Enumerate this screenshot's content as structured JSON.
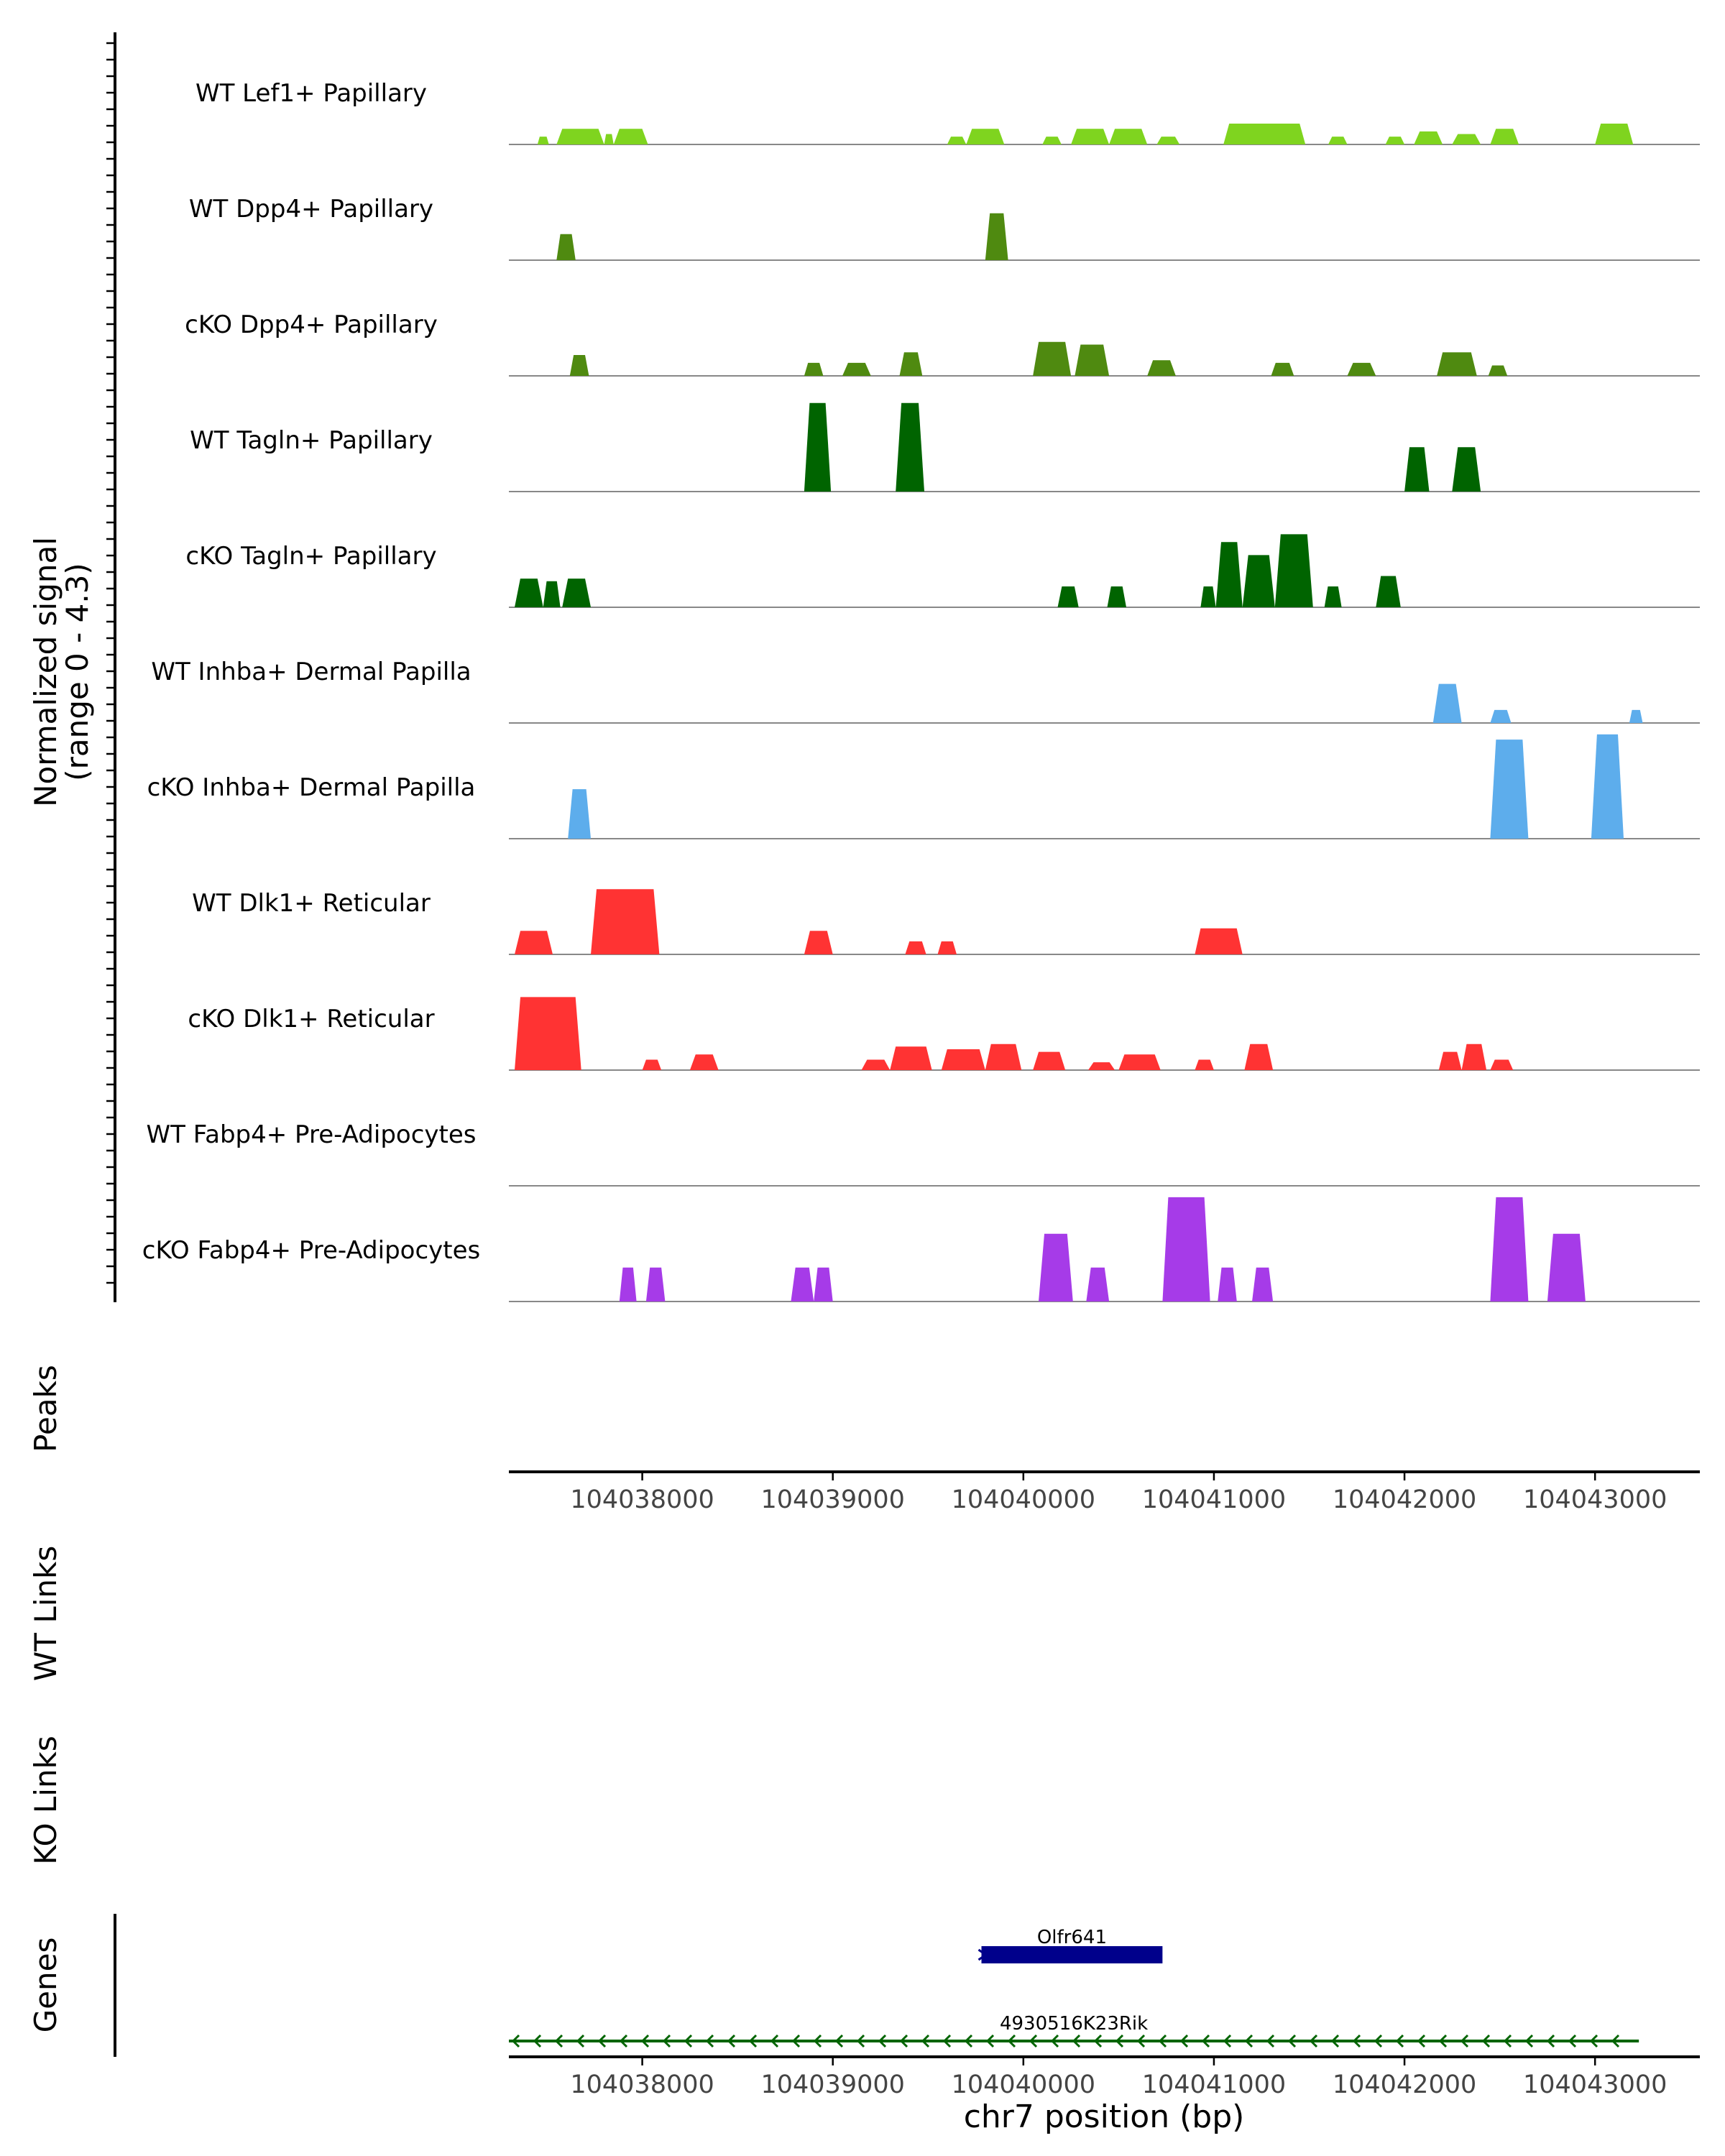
{
  "chart_data": {
    "type": "area",
    "y_axis_label": [
      "Normalized signal",
      "(range 0 - 4.3)"
    ],
    "xlabel": "chr7 position (bp)",
    "xlim": [
      104037300,
      104043550
    ],
    "ylim": [
      0,
      4.3
    ],
    "x_ticks": [
      104038000,
      104039000,
      104040000,
      104041000,
      104042000,
      104043000
    ],
    "x_tick_labels": [
      "104038000",
      "104039000",
      "104040000",
      "104041000",
      "104042000",
      "104043000"
    ],
    "tracks": [
      {
        "name": "WT Lef1+ Papillary",
        "color": "#7FD41F",
        "peaks": [
          [
            104037450,
            104037510,
            0.3
          ],
          [
            104037550,
            104037800,
            0.6
          ],
          [
            104037800,
            104037850,
            0.4
          ],
          [
            104037850,
            104038030,
            0.6
          ],
          [
            104039600,
            104039700,
            0.3
          ],
          [
            104039700,
            104039900,
            0.6
          ],
          [
            104040100,
            104040200,
            0.3
          ],
          [
            104040250,
            104040450,
            0.6
          ],
          [
            104040450,
            104040650,
            0.6
          ],
          [
            104040700,
            104040820,
            0.3
          ],
          [
            104041050,
            104041480,
            0.8
          ],
          [
            104041600,
            104041700,
            0.3
          ],
          [
            104041900,
            104042000,
            0.3
          ],
          [
            104042050,
            104042200,
            0.5
          ],
          [
            104042250,
            104042400,
            0.4
          ],
          [
            104042450,
            104042600,
            0.6
          ],
          [
            104043000,
            104043200,
            0.8
          ]
        ]
      },
      {
        "name": "WT Dpp4+ Papillary",
        "color": "#4F8A10",
        "peaks": [
          [
            104037550,
            104037650,
            1.0
          ],
          [
            104039800,
            104039920,
            1.8
          ]
        ]
      },
      {
        "name": "cKO Dpp4+ Papillary",
        "color": "#4F8A10",
        "peaks": [
          [
            104037620,
            104037720,
            0.8
          ],
          [
            104038850,
            104038950,
            0.5
          ],
          [
            104039050,
            104039200,
            0.5
          ],
          [
            104039350,
            104039470,
            0.9
          ],
          [
            104040050,
            104040250,
            1.3
          ],
          [
            104040270,
            104040450,
            1.2
          ],
          [
            104040650,
            104040800,
            0.6
          ],
          [
            104041300,
            104041420,
            0.5
          ],
          [
            104041700,
            104041850,
            0.5
          ],
          [
            104042170,
            104042380,
            0.9
          ],
          [
            104042440,
            104042540,
            0.4
          ]
        ]
      },
      {
        "name": "WT Tagln+ Papillary",
        "color": "#006400",
        "peaks": [
          [
            104038850,
            104038990,
            3.4
          ],
          [
            104039330,
            104039480,
            3.4
          ],
          [
            104042000,
            104042130,
            1.7
          ],
          [
            104042250,
            104042400,
            1.7
          ]
        ]
      },
      {
        "name": "cKO Tagln+ Papillary",
        "color": "#006400",
        "peaks": [
          [
            104037330,
            104037480,
            1.1
          ],
          [
            104037480,
            104037570,
            1.0
          ],
          [
            104037580,
            104037730,
            1.1
          ],
          [
            104040180,
            104040290,
            0.8
          ],
          [
            104040440,
            104040540,
            0.8
          ],
          [
            104040930,
            104041010,
            0.8
          ],
          [
            104041010,
            104041150,
            2.5
          ],
          [
            104041150,
            104041320,
            2.0
          ],
          [
            104041320,
            104041520,
            2.8
          ],
          [
            104041580,
            104041670,
            0.8
          ],
          [
            104041850,
            104041980,
            1.2
          ]
        ]
      },
      {
        "name": "WT Inhba+ Dermal Papilla",
        "color": "#5DADEC",
        "peaks": [
          [
            104042150,
            104042300,
            1.5
          ],
          [
            104042450,
            104042560,
            0.5
          ],
          [
            104043180,
            104043250,
            0.5
          ]
        ]
      },
      {
        "name": "cKO Inhba+ Dermal Papilla",
        "color": "#5DADEC",
        "peaks": [
          [
            104037610,
            104037730,
            1.9
          ],
          [
            104042450,
            104042650,
            3.8
          ],
          [
            104042980,
            104043150,
            4.0
          ]
        ]
      },
      {
        "name": "WT Dlk1+ Reticular",
        "color": "#FF3333",
        "peaks": [
          [
            104037330,
            104037530,
            0.9
          ],
          [
            104037730,
            104038090,
            2.5
          ],
          [
            104038850,
            104039000,
            0.9
          ],
          [
            104039380,
            104039490,
            0.5
          ],
          [
            104039550,
            104039650,
            0.5
          ],
          [
            104040900,
            104041150,
            1.0
          ]
        ]
      },
      {
        "name": "cKO Dlk1+ Reticular",
        "color": "#FF3333",
        "peaks": [
          [
            104037330,
            104037680,
            2.8
          ],
          [
            104038000,
            104038100,
            0.4
          ],
          [
            104038250,
            104038400,
            0.6
          ],
          [
            104039150,
            104039300,
            0.4
          ],
          [
            104039300,
            104039520,
            0.9
          ],
          [
            104039570,
            104039800,
            0.8
          ],
          [
            104039800,
            104039990,
            1.0
          ],
          [
            104040050,
            104040220,
            0.7
          ],
          [
            104040340,
            104040480,
            0.3
          ],
          [
            104040500,
            104040720,
            0.6
          ],
          [
            104040900,
            104041000,
            0.4
          ],
          [
            104041160,
            104041310,
            1.0
          ],
          [
            104042180,
            104042300,
            0.7
          ],
          [
            104042300,
            104042430,
            1.0
          ],
          [
            104042450,
            104042570,
            0.4
          ]
        ]
      },
      {
        "name": "WT Fabp4+ Pre-Adipocytes",
        "color": "#A63BE8",
        "peaks": []
      },
      {
        "name": "cKO Fabp4+ Pre-Adipocytes",
        "color": "#A63BE8",
        "peaks": [
          [
            104037880,
            104037970,
            1.3
          ],
          [
            104038020,
            104038120,
            1.3
          ],
          [
            104038780,
            104038900,
            1.3
          ],
          [
            104038900,
            104039000,
            1.3
          ],
          [
            104040080,
            104040260,
            2.6
          ],
          [
            104040330,
            104040450,
            1.3
          ],
          [
            104040730,
            104040980,
            4.0
          ],
          [
            104041020,
            104041120,
            1.3
          ],
          [
            104041200,
            104041310,
            1.3
          ],
          [
            104042450,
            104042650,
            4.0
          ],
          [
            104042750,
            104042950,
            2.6
          ]
        ]
      }
    ],
    "panels": {
      "peaks": "Peaks",
      "wt_links": "WT Links",
      "ko_links": "KO Links",
      "genes": "Genes"
    },
    "genes": [
      {
        "name": "Olfr641",
        "start": 104039780,
        "end": 104040730,
        "strand": "+",
        "color": "#00008B",
        "row": 0
      },
      {
        "name": "4930516K23Rik",
        "start": 104037300,
        "end": 104043230,
        "strand": "-",
        "color": "#006400",
        "row": 1
      }
    ]
  }
}
